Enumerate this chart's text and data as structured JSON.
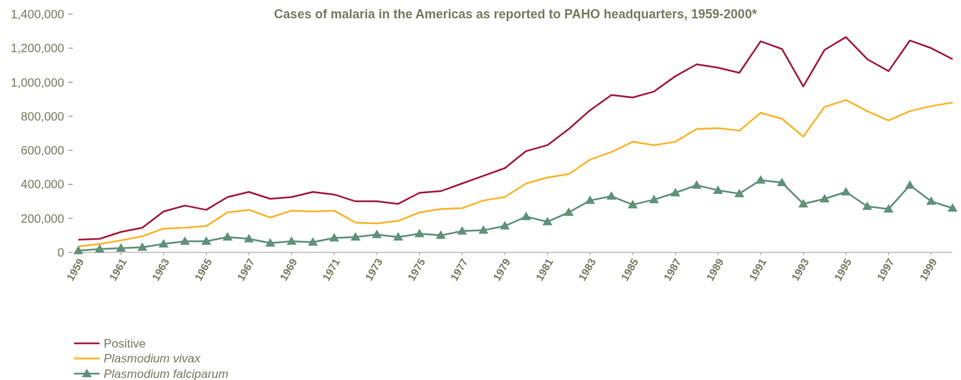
{
  "chart_data": {
    "type": "line",
    "title": "Cases of malaria in the Americas as reported to PAHO headquarters, 1959-2000*",
    "x": [
      1959,
      1960,
      1961,
      1962,
      1963,
      1964,
      1965,
      1966,
      1967,
      1968,
      1969,
      1970,
      1971,
      1972,
      1973,
      1974,
      1975,
      1976,
      1977,
      1978,
      1979,
      1980,
      1981,
      1982,
      1983,
      1984,
      1985,
      1986,
      1987,
      1988,
      1989,
      1990,
      1991,
      1992,
      1993,
      1994,
      1995,
      1996,
      1997,
      1998,
      1999,
      2000
    ],
    "series": [
      {
        "name": "Positive",
        "color": "#a31f3f",
        "marker": "none",
        "values": [
          75000,
          80000,
          120000,
          145000,
          240000,
          275000,
          250000,
          325000,
          355000,
          315000,
          325000,
          355000,
          340000,
          300000,
          300000,
          285000,
          350000,
          360000,
          405000,
          450000,
          495000,
          595000,
          630000,
          725000,
          835000,
          925000,
          910000,
          945000,
          1035000,
          1105000,
          1085000,
          1055000,
          1240000,
          1195000,
          975000,
          1190000,
          1265000,
          1135000,
          1065000,
          1245000,
          1200000,
          1135000
        ]
      },
      {
        "name": "Plasmodium vivax",
        "color": "#fbb52e",
        "marker": "none",
        "values": [
          35000,
          50000,
          70000,
          95000,
          140000,
          145000,
          155000,
          235000,
          250000,
          205000,
          245000,
          240000,
          245000,
          175000,
          170000,
          185000,
          235000,
          255000,
          260000,
          305000,
          325000,
          405000,
          440000,
          460000,
          545000,
          590000,
          650000,
          630000,
          650000,
          725000,
          730000,
          715000,
          820000,
          785000,
          680000,
          855000,
          895000,
          830000,
          775000,
          830000,
          860000,
          880000
        ]
      },
      {
        "name": "Plasmodium falciparum",
        "color": "#5f9179",
        "marker": "triangle",
        "values": [
          10000,
          20000,
          25000,
          30000,
          50000,
          65000,
          65000,
          90000,
          80000,
          55000,
          65000,
          60000,
          85000,
          90000,
          105000,
          90000,
          110000,
          100000,
          125000,
          130000,
          155000,
          210000,
          180000,
          235000,
          305000,
          330000,
          280000,
          310000,
          350000,
          395000,
          365000,
          345000,
          425000,
          410000,
          285000,
          315000,
          355000,
          270000,
          255000,
          395000,
          300000,
          260000
        ]
      }
    ],
    "xlim": [
      1959,
      2000
    ],
    "xticks": [
      1959,
      1961,
      1963,
      1965,
      1967,
      1969,
      1971,
      1973,
      1975,
      1977,
      1979,
      1981,
      1983,
      1985,
      1987,
      1989,
      1991,
      1993,
      1995,
      1997,
      1999
    ],
    "ylim": [
      0,
      1400000
    ],
    "yticks": [
      {
        "value": 0,
        "label": "0"
      },
      {
        "value": 200000,
        "label": "200,000"
      },
      {
        "value": 400000,
        "label": "400,000"
      },
      {
        "value": 600000,
        "label": "600,000"
      },
      {
        "value": 800000,
        "label": "800,000"
      },
      {
        "value": 1000000,
        "label": "1,000,000"
      },
      {
        "value": 1200000,
        "label": "1,200,000"
      },
      {
        "value": 1400000,
        "label": "1,400,000"
      }
    ],
    "grid": false,
    "legend": "bottom left"
  }
}
